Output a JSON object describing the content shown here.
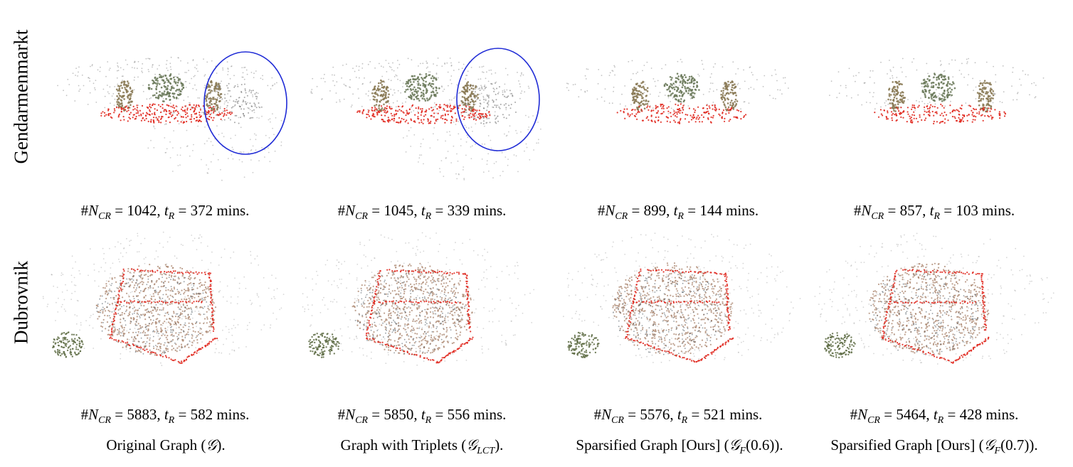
{
  "rows": [
    {
      "label": "Gendarmenmarkt",
      "metrics": [
        {
          "n": "1042",
          "t": "372"
        },
        {
          "n": "1045",
          "t": "339"
        },
        {
          "n": "899",
          "t": "144"
        },
        {
          "n": "857",
          "t": "103"
        }
      ]
    },
    {
      "label": "Dubrovnik",
      "metrics": [
        {
          "n": "5883",
          "t": "582"
        },
        {
          "n": "5850",
          "t": "556"
        },
        {
          "n": "5576",
          "t": "521"
        },
        {
          "n": "5464",
          "t": "428"
        }
      ]
    }
  ],
  "metric_text": {
    "hash": "#",
    "symbol_n": "N",
    "sub_n": "CR",
    "eq": " = ",
    "comma": ", ",
    "symbol_t": "t",
    "sub_t": "R",
    "unit": " mins."
  },
  "captions": [
    {
      "text": "Original Graph (",
      "math": "𝒢",
      "sub": "",
      "tail": ")."
    },
    {
      "text": "Graph with Triplets (",
      "math": "𝒢",
      "sub": "LCT",
      "tail": ")."
    },
    {
      "text": "Sparsified Graph [Ours] (",
      "math": "𝒢",
      "sub": "F",
      "tail": "(0.6))."
    },
    {
      "text": "Sparsified Graph [Ours] (",
      "math": "𝒢",
      "sub": "F",
      "tail": "(0.7))."
    }
  ],
  "colors": {
    "camera_red": "#e0261c",
    "highlight_circle": "#1f2bd6",
    "points_gray": "#9a9a9a",
    "roof_brown": "#a8826a",
    "vegetation": "#5d6b43"
  },
  "annotations": {
    "circles_on_panels": [
      0,
      1
    ]
  }
}
